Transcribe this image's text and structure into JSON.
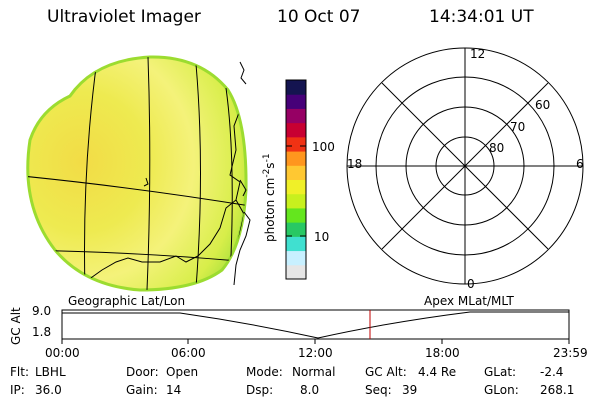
{
  "header": {
    "title": "Ultraviolet Imager",
    "date": "10 Oct 07",
    "time": "14:34:01 UT"
  },
  "colorbar": {
    "unit_label": "photon cm",
    "unit_exp1": "-2",
    "unit_s": "s",
    "unit_exp2": "-1",
    "ticks": [
      "100",
      "10"
    ],
    "colors": [
      "#e6e6e6",
      "#c8f0ff",
      "#40e0d0",
      "#28c864",
      "#64e61e",
      "#c8f01e",
      "#f0f028",
      "#ffc832",
      "#ff961e",
      "#f03214",
      "#c80032",
      "#960064",
      "#460078",
      "#141450"
    ]
  },
  "polar_plot": {
    "ticks_left": "18",
    "ticks_right": "6",
    "ticks_top": "12",
    "ticks_bottom": "0",
    "latitudes": [
      "60",
      "70",
      "80"
    ]
  },
  "panel_labels": {
    "left": "Geographic Lat/Lon",
    "right": "Apex  MLat/MLT"
  },
  "altitude_plot": {
    "axis_label": "GC Alt",
    "y_top": "9.0",
    "y_bottom": "1.8",
    "x_ticks": [
      "00:00",
      "06:00",
      "12:00",
      "18:00",
      "23:59"
    ],
    "current_time_color": "#c00000"
  },
  "footer": {
    "filter_label": "Flt:",
    "filter_value": "LBHL",
    "ip_label": "IP:",
    "ip_value": "36.0",
    "door_label": "Door:",
    "door_value": "Open",
    "gain_label": "Gain:",
    "gain_value": "14",
    "mode_label": "Mode:",
    "mode_value": "Normal",
    "dsp_label": "Dsp:",
    "dsp_value": "8.0",
    "gcalt_label": "GC Alt:",
    "gcalt_value": "4.4 Re",
    "seq_label": "Seq:",
    "seq_value": "39",
    "glat_label": "GLat:",
    "glat_value": "-2.4",
    "glon_label": "GLon:",
    "glon_value": "268.1"
  }
}
